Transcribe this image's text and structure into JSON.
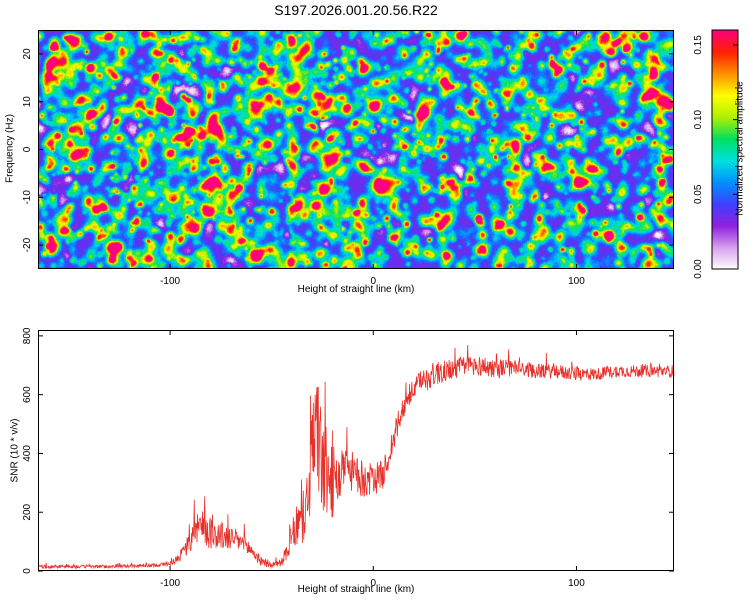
{
  "title": "S197.2026.001.20.56.R22",
  "chart_data": [
    {
      "type": "heatmap",
      "xlabel": "Height of straight line (km)",
      "ylabel": "Frequency (Hz)",
      "xlim": [
        -165,
        148
      ],
      "ylim": [
        -25,
        25
      ],
      "xticks": [
        -100,
        0,
        100
      ],
      "yticks": [
        -20,
        -10,
        0,
        10,
        20
      ],
      "colorbar": {
        "label": "Normalized spectral amplitude",
        "range": [
          0,
          0.16
        ],
        "ticks": [
          0.0,
          0.05,
          0.1,
          0.15
        ],
        "tick_labels": [
          "0.00",
          "0.05",
          "0.10",
          "0.15"
        ],
        "colors": [
          "#ffffff",
          "#d9a0f0",
          "#9020e0",
          "#4040ff",
          "#0090ff",
          "#00e0e0",
          "#00e060",
          "#b0f000",
          "#ffff00",
          "#ff9000",
          "#ff2000",
          "#ff0080"
        ]
      },
      "description_values": "dense speckle of amplitudes mostly 0.02-0.06 with scattered peaks to ~0.15"
    },
    {
      "type": "line",
      "xlabel": "Height of straight line (km)",
      "ylabel": "SNR (10 * v/v)",
      "xlim": [
        -165,
        148
      ],
      "ylim": [
        0,
        820
      ],
      "xticks": [
        -100,
        0,
        100
      ],
      "yticks": [
        0,
        200,
        400,
        600,
        800
      ],
      "series": [
        {
          "name": "SNR",
          "color": "#e8302a",
          "x": [
            -165,
            -150,
            -130,
            -110,
            -100,
            -95,
            -90,
            -88,
            -85,
            -80,
            -75,
            -70,
            -65,
            -60,
            -55,
            -50,
            -45,
            -40,
            -38,
            -35,
            -32,
            -30,
            -28,
            -25,
            -20,
            -15,
            -12,
            -10,
            -5,
            0,
            5,
            10,
            15,
            20,
            25,
            30,
            40,
            50,
            60,
            70,
            80,
            90,
            100,
            110,
            120,
            130,
            140,
            148
          ],
          "values": [
            15,
            15,
            15,
            18,
            25,
            50,
            100,
            180,
            150,
            130,
            120,
            110,
            100,
            70,
            30,
            20,
            30,
            110,
            150,
            170,
            250,
            400,
            500,
            350,
            300,
            330,
            360,
            330,
            310,
            310,
            330,
            450,
            560,
            620,
            650,
            670,
            690,
            700,
            690,
            690,
            680,
            680,
            670,
            670,
            680,
            680,
            680,
            680
          ],
          "noise_amplitude": [
            8,
            8,
            8,
            8,
            10,
            25,
            60,
            120,
            90,
            80,
            70,
            60,
            50,
            40,
            20,
            15,
            20,
            80,
            100,
            120,
            160,
            250,
            300,
            250,
            180,
            120,
            110,
            100,
            90,
            80,
            70,
            70,
            60,
            50,
            60,
            60,
            50,
            50,
            50,
            40,
            35,
            35,
            35,
            30,
            30,
            30,
            30,
            30
          ]
        }
      ]
    }
  ]
}
